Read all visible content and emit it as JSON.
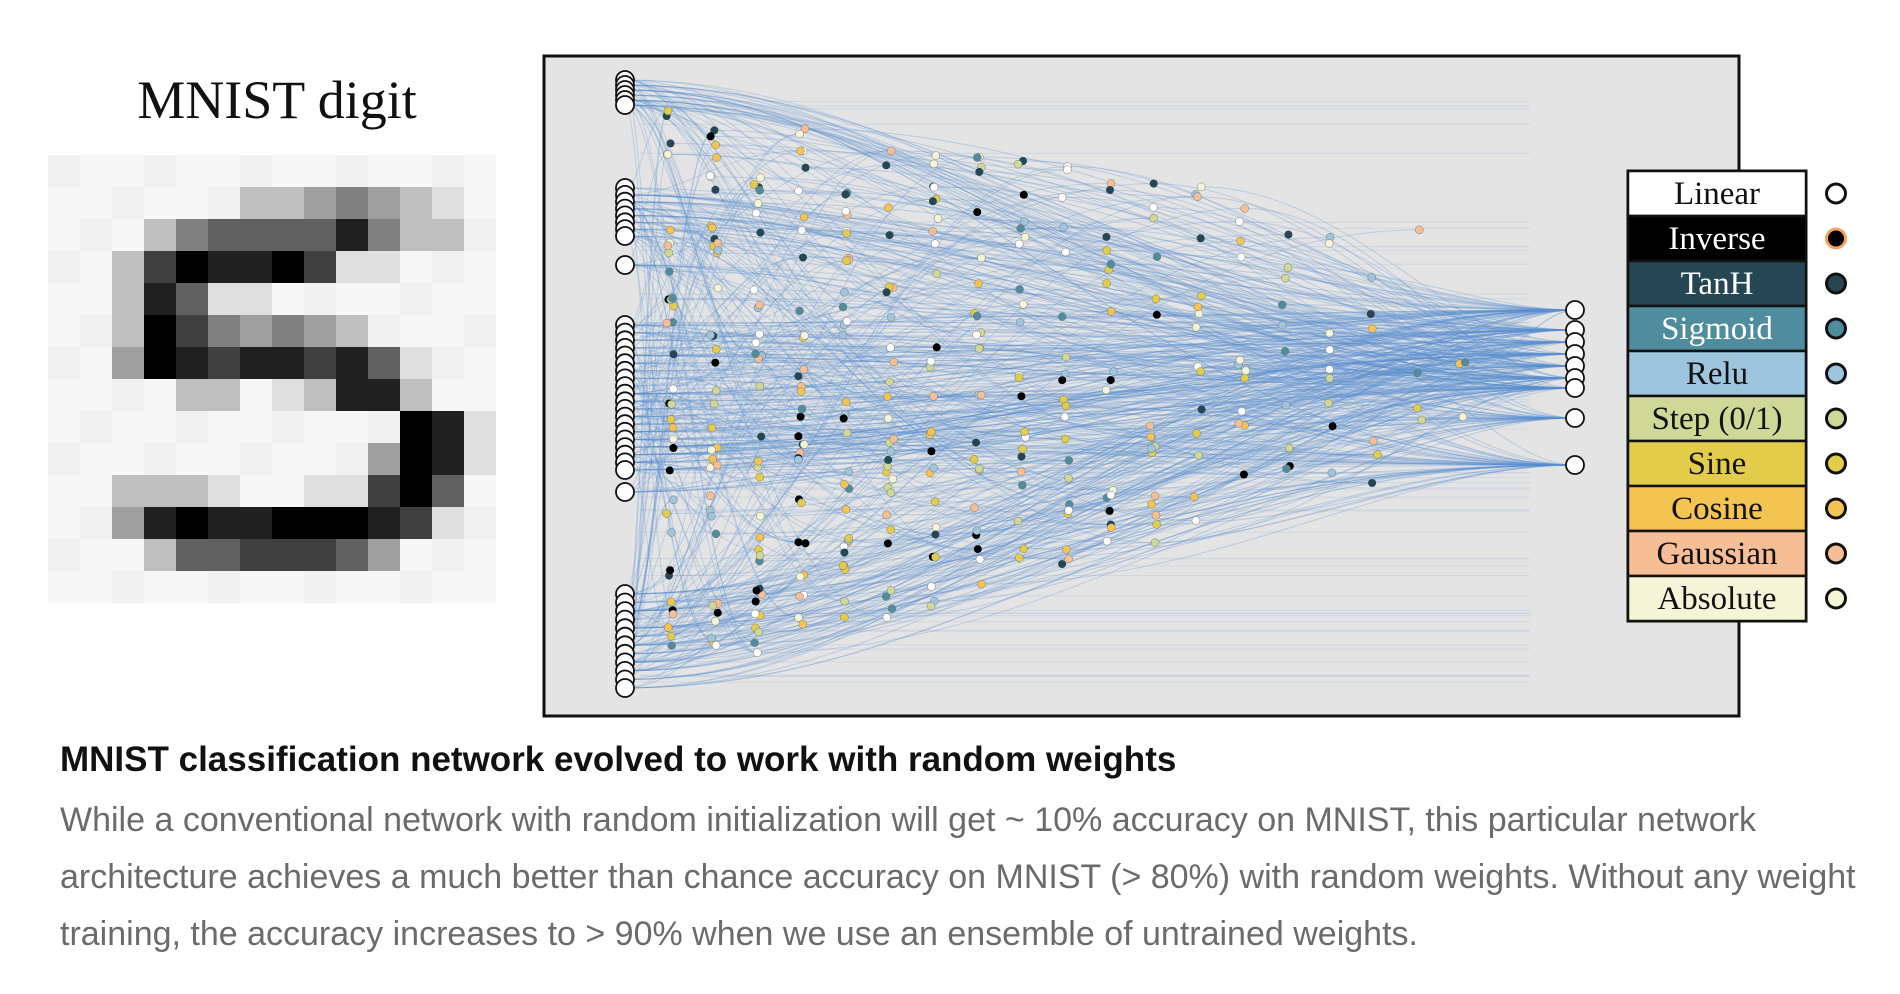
{
  "figure": {
    "mnist_label": "MNIST digit",
    "legend": [
      {
        "label": "Linear",
        "bg": "#ffffff",
        "text": "#111111",
        "node_fill": "#ffffff",
        "node_ring": "#111111"
      },
      {
        "label": "Inverse",
        "bg": "#000000",
        "text": "#ffffff",
        "node_fill": "#000000",
        "node_ring": "#f4a261"
      },
      {
        "label": "TanH",
        "bg": "#264653",
        "text": "#ffffff",
        "node_fill": "#264653",
        "node_ring": "#111111"
      },
      {
        "label": "Sigmoid",
        "bg": "#4f8c9d",
        "text": "#ffffff",
        "node_fill": "#4f8c9d",
        "node_ring": "#111111"
      },
      {
        "label": "Relu",
        "bg": "#9ec5de",
        "text": "#111111",
        "node_fill": "#9ec5de",
        "node_ring": "#111111"
      },
      {
        "label": "Step (0/1)",
        "bg": "#cfd896",
        "text": "#111111",
        "node_fill": "#cfd896",
        "node_ring": "#111111"
      },
      {
        "label": "Sine",
        "bg": "#e2cc4a",
        "text": "#111111",
        "node_fill": "#e2cc4a",
        "node_ring": "#111111"
      },
      {
        "label": "Cosine",
        "bg": "#f4c452",
        "text": "#111111",
        "node_fill": "#f4c452",
        "node_ring": "#111111"
      },
      {
        "label": "Gaussian",
        "bg": "#f5be96",
        "text": "#111111",
        "node_fill": "#f5be96",
        "node_ring": "#111111"
      },
      {
        "label": "Absolute",
        "bg": "#f4f5d6",
        "text": "#111111",
        "node_fill": "#f4f5d6",
        "node_ring": "#111111"
      }
    ],
    "colors": {
      "network_bg": "#e4e4e4",
      "edge": "#5b8fd0"
    }
  },
  "caption": {
    "title": "MNIST classification network evolved to work with random weights",
    "body": "While a conventional network with random initialization will get ~ 10% accuracy on MNIST, this particular network architecture achieves a much better than chance accuracy on MNIST (> 80%) with random weights. Without any weight training, the accuracy increases to > 90% when we use an ensemble of untrained weights."
  }
}
